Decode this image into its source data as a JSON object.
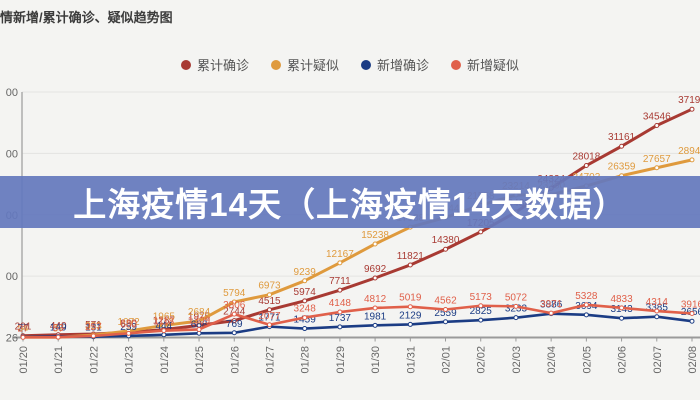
{
  "header": {
    "title": "情新增/累计确诊、疑似趋势图"
  },
  "overlay": {
    "text": "上海疫情14天（上海疫情14天数据）"
  },
  "colors": {
    "cum_confirmed": "#a83a33",
    "cum_suspected": "#df9a3d",
    "new_confirmed": "#1b3c84",
    "new_suspected": "#e0604a",
    "overlay_bg": "rgba(100,120,189,0.93)",
    "overlay_text": "#ffffff",
    "axis": "#9a9a9a",
    "grid": "#e3e3e1",
    "tick_text": "#666666",
    "title_text": "#3c3c3c",
    "legend_text": "#555555",
    "page_bg": "#f4f4f2"
  },
  "legend": [
    {
      "label": "累计确诊",
      "color": "#a83a33"
    },
    {
      "label": "累计疑似",
      "color": "#df9a3d"
    },
    {
      "label": "新增确诊",
      "color": "#1b3c84"
    },
    {
      "label": "新增疑似",
      "color": "#e0604a"
    }
  ],
  "chart_data": {
    "type": "line",
    "title": "情新增/累计确诊、疑似趋势图",
    "categories": [
      "01/20",
      "01/21",
      "01/22",
      "01/23",
      "01/24",
      "01/25",
      "01/26",
      "01/27",
      "01/28",
      "01/29",
      "01/30",
      "01/31",
      "02/01",
      "02/02",
      "02/03",
      "02/04",
      "02/05",
      "02/06",
      "02/07",
      "02/08"
    ],
    "series": [
      {
        "name": "累计确诊",
        "color": "#a83a33",
        "values": [
          291,
          440,
          571,
          830,
          1287,
          1975,
          2744,
          4515,
          5974,
          7711,
          9692,
          11821,
          14380,
          17205,
          20438,
          24324,
          28018,
          31161,
          34546,
          37198
        ]
      },
      {
        "name": "累计疑似",
        "color": "#df9a3d",
        "values": [
          54,
          37,
          393,
          1072,
          1965,
          2684,
          5794,
          6973,
          9239,
          12167,
          15238,
          17988,
          19544,
          21558,
          23214,
          23260,
          24702,
          26359,
          27657,
          28942
        ]
      },
      {
        "name": "新增确诊",
        "color": "#1b3c84",
        "values": [
          77,
          149,
          131,
          259,
          444,
          688,
          769,
          1771,
          1459,
          1737,
          1981,
          2129,
          2559,
          2825,
          3233,
          3886,
          3694,
          3143,
          3385,
          2656
        ]
      },
      {
        "name": "新增疑似",
        "color": "#e0604a",
        "values": [
          27,
          53,
          257,
          680,
          1118,
          1309,
          3806,
          2077,
          3248,
          4148,
          4812,
          5019,
          4562,
          5173,
          5072,
          3971,
          5328,
          4833,
          4314,
          3916
        ]
      }
    ],
    "y_axis": {
      "min": 0,
      "max": 40000,
      "gridline_values": [
        40000,
        30000,
        20000,
        10000
      ],
      "visible_tick_labels": [
        "00",
        "00",
        "00",
        "00",
        "26"
      ]
    },
    "x_axis": {
      "label_rotation": -90
    },
    "legend_position": "top",
    "grid": "horizontal-only"
  }
}
